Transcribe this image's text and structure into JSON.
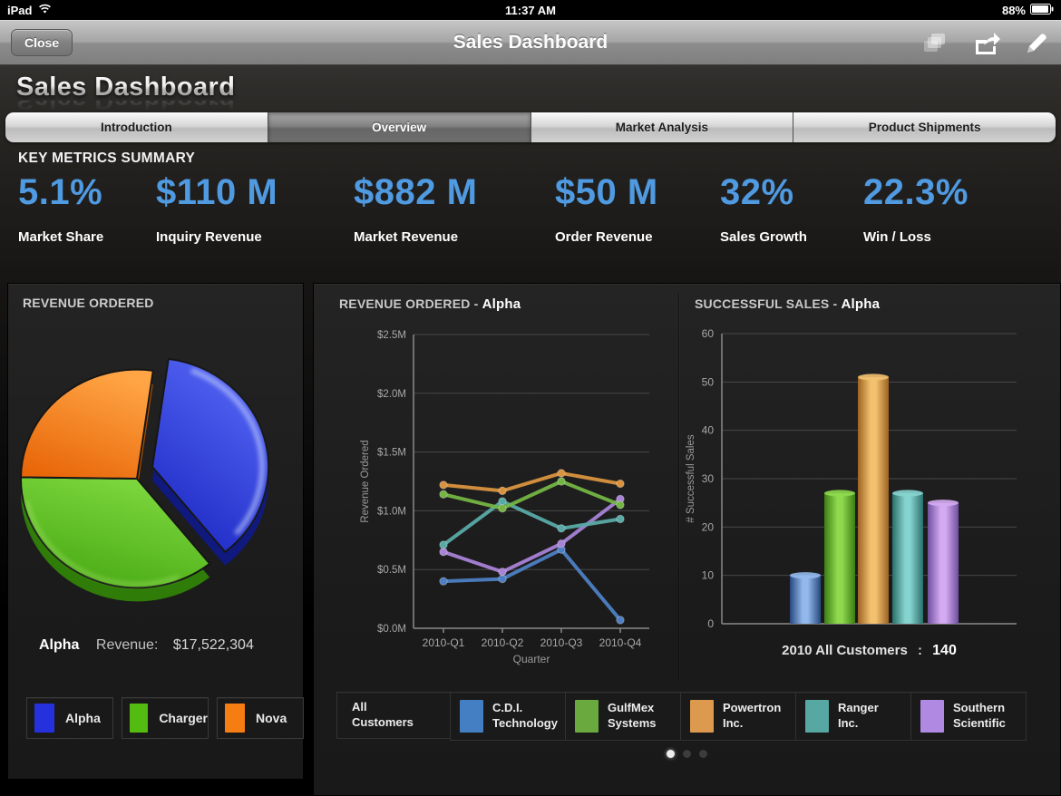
{
  "status_bar": {
    "device": "iPad",
    "time": "11:37 AM",
    "battery_pct": "88%"
  },
  "nav_bar": {
    "close_label": "Close",
    "title": "Sales Dashboard"
  },
  "page": {
    "heading": "Sales Dashboard",
    "metrics_title": "KEY METRICS SUMMARY",
    "accent_color": "#4f9ae1"
  },
  "tabs": [
    {
      "label": "Introduction",
      "selected": false
    },
    {
      "label": "Overview",
      "selected": true
    },
    {
      "label": "Market Analysis",
      "selected": false
    },
    {
      "label": "Product Shipments",
      "selected": false
    }
  ],
  "key_metrics": [
    {
      "value": "5.1%",
      "label": "Market Share"
    },
    {
      "value": "$110 M",
      "label": "Inquiry Revenue"
    },
    {
      "value": "$882 M",
      "label": "Market Revenue"
    },
    {
      "value": "$50 M",
      "label": "Order Revenue"
    },
    {
      "value": "32%",
      "label": "Sales Growth"
    },
    {
      "value": "22.3%",
      "label": "Win / Loss"
    }
  ],
  "pie_panel": {
    "selected_name": "Alpha",
    "revenue_label": "Revenue:",
    "revenue_value": "$17,522,304",
    "legend": [
      {
        "label": "Alpha",
        "color": "#2531dd"
      },
      {
        "label": "Charger",
        "color": "#54bb10"
      },
      {
        "label": "Nova",
        "color": "#f57d12"
      }
    ]
  },
  "chart_data": [
    {
      "type": "pie",
      "title": "REVENUE ORDERED",
      "labels": [
        "Alpha",
        "Charger",
        "Nova"
      ],
      "values_pct": [
        37,
        36,
        27
      ],
      "selected": "Alpha",
      "selected_revenue": "$17,522,304",
      "start_angle": -82,
      "colors": [
        {
          "base": "#2531dd",
          "light": "#5466f5",
          "dark": "#1b27c2",
          "depth": "#10197e"
        },
        {
          "base": "#54bb10",
          "light": "#7fd83f",
          "dark": "#46a812",
          "depth": "#2f7d08"
        },
        {
          "base": "#f57d12",
          "light": "#ffa545",
          "dark": "#e86608",
          "depth": "#aa4d00"
        }
      ]
    },
    {
      "type": "line",
      "title_prefix": "REVENUE ORDERED - ",
      "title_em": "Alpha",
      "xlabel": "Quarter",
      "ylabel": "Revenue Ordered",
      "x": [
        "2010-Q1",
        "2010-Q2",
        "2010-Q3",
        "2010-Q4"
      ],
      "ylim": [
        0,
        2.5
      ],
      "yticks": [
        "$0.0M",
        "$0.5M",
        "$1.0M",
        "$1.5M",
        "$2.0M",
        "$2.5M"
      ],
      "legend_position": "bottom",
      "grid": true,
      "series": [
        {
          "name": "C.D.I. Technology",
          "color": "#4d7fc2",
          "values": [
            0.4,
            0.42,
            0.67,
            0.07
          ]
        },
        {
          "name": "Southern Scientific",
          "color": "#a883d6",
          "values": [
            0.65,
            0.48,
            0.72,
            1.1
          ]
        },
        {
          "name": "Ranger Inc.",
          "color": "#58aaa6",
          "values": [
            0.71,
            1.08,
            0.85,
            0.93
          ]
        },
        {
          "name": "GulfMex Systems",
          "color": "#74b545",
          "values": [
            1.14,
            1.02,
            1.25,
            1.05
          ]
        },
        {
          "name": "Powertron Inc.",
          "color": "#d9933f",
          "values": [
            1.22,
            1.17,
            1.32,
            1.23
          ]
        }
      ]
    },
    {
      "type": "bar",
      "title_prefix": "SUCCESSFUL SALES - ",
      "title_em": "Alpha",
      "ylabel": "# Successful Sales",
      "ylim": [
        0,
        60
      ],
      "ytick_step": 10,
      "grid": true,
      "categories": [
        "C.D.I. Technology",
        "GulfMex Systems",
        "Powertron Inc.",
        "Ranger Inc.",
        "Southern Scientific"
      ],
      "values": [
        10,
        27,
        51,
        27,
        25
      ],
      "colors": [
        {
          "dark": "#27487e",
          "light": "#93b9ec"
        },
        {
          "dark": "#3c7d14",
          "light": "#8ed94e"
        },
        {
          "dark": "#9c6322",
          "light": "#f2c270"
        },
        {
          "dark": "#2b6f6b",
          "light": "#86d4cf"
        },
        {
          "dark": "#6f4f9e",
          "light": "#d4aaf2"
        }
      ],
      "caption": {
        "text": "2010 All Customers",
        "separator": ":",
        "value": "140"
      }
    }
  ],
  "bottom_legend": [
    {
      "line1": "All",
      "line2": "Customers",
      "color": null
    },
    {
      "line1": "C.D.I.",
      "line2": "Technology",
      "color": "#447fc4"
    },
    {
      "line1": "GulfMex",
      "line2": "Systems",
      "color": "#69a93d"
    },
    {
      "line1": "Powertron",
      "line2": "Inc.",
      "color": "#dd9a4f"
    },
    {
      "line1": "Ranger",
      "line2": "Inc.",
      "color": "#57a7a2"
    },
    {
      "line1": "Southern",
      "line2": "Scientific",
      "color": "#b08ae2"
    }
  ],
  "page_dots": {
    "count": 3,
    "active_index": 0
  }
}
